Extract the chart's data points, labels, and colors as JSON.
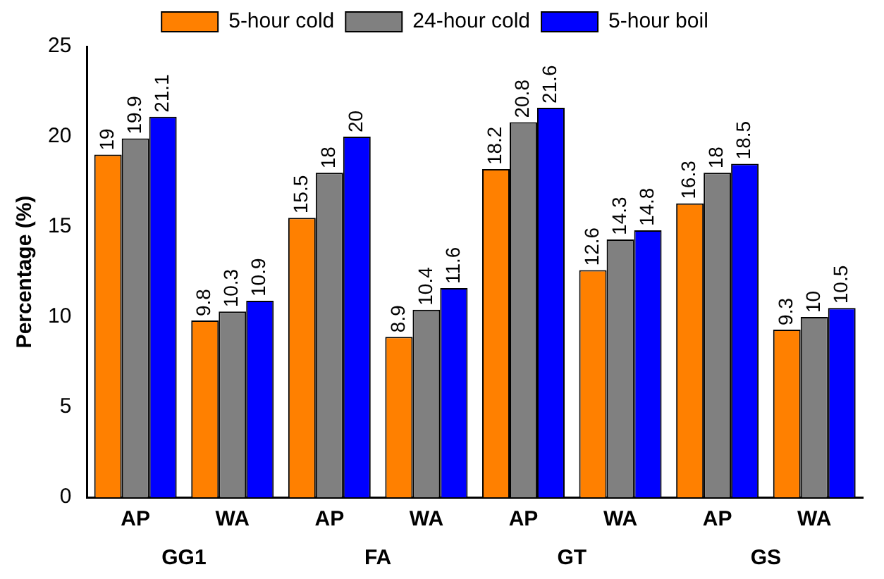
{
  "chart_data": {
    "type": "bar",
    "ylabel": "Percentage (%)",
    "categories": [
      "AP",
      "WA",
      "AP",
      "WA",
      "AP",
      "WA",
      "AP",
      "WA"
    ],
    "series": [
      {
        "name": "5-hour cold",
        "color": "#ff8000",
        "values": [
          19,
          9.8,
          15.5,
          8.9,
          18.2,
          12.6,
          16.3,
          9.3
        ]
      },
      {
        "name": "24-hour cold",
        "color": "#808080",
        "values": [
          19.9,
          10.3,
          18,
          10.4,
          20.8,
          14.3,
          18,
          10
        ]
      },
      {
        "name": "5-hour boil",
        "color": "#0000ff",
        "values": [
          21.1,
          10.9,
          20,
          11.6,
          21.6,
          14.8,
          18.5,
          10.5
        ]
      }
    ],
    "ylim": [
      0,
      25
    ],
    "yticks": [
      0,
      5,
      10,
      15,
      20,
      25
    ],
    "grid": false,
    "legend": "top",
    "data_labels": true,
    "annotations": [
      "GG1",
      "FA",
      "GT",
      "GS"
    ]
  }
}
